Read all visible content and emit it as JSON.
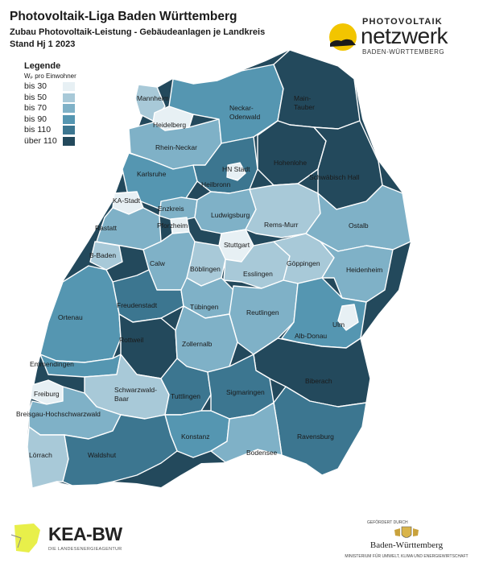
{
  "header": {
    "title": "Photovoltaik-Liga Baden Württemberg",
    "subtitle": "Zubau Photovoltaik-Leistung - Gebäudeanlagen je Landkreis",
    "stand": "Stand Hj 1 2023"
  },
  "pv_logo": {
    "top": "PHOTOVOLTAIK",
    "main": "netzwerk",
    "region": "BADEN-WÜRTTEMBERG"
  },
  "legend": {
    "title": "Legende",
    "unit": "Wₚ pro Einwohner",
    "classes": [
      {
        "label": "bis 30",
        "color": "#e7f0f4"
      },
      {
        "label": "bis 50",
        "color": "#a8c9d8"
      },
      {
        "label": "bis 70",
        "color": "#7fb1c7"
      },
      {
        "label": "bis 90",
        "color": "#5596b1"
      },
      {
        "label": "bis 110",
        "color": "#3c7690"
      },
      {
        "label": "über 110",
        "color": "#23495c"
      }
    ]
  },
  "map_labels": {
    "mannheim": "Mannheim",
    "heidelberg": "Heidelberg",
    "rhein_neckar": "Rhein-Neckar",
    "neckar_odenwald": "Neckar-\nOdenwald",
    "main_tauber": "Main-\nTauber",
    "karlsruhe": "Karlsruhe",
    "hn_stadt": "HN Stadt",
    "hohenlohe": "Hohenlohe",
    "schwaebisch_hall": "Schwäbisch Hall",
    "heilbronn": "Heilbronn",
    "ka_stadt": "KA-Stadt",
    "enzkreis": "Enzkreis",
    "ludwigsburg": "Ludwigsburg",
    "rems_murr": "Rems-Murr",
    "ostalb": "Ostalb",
    "rastatt": "Rastatt",
    "pforzheim": "Pforzheim",
    "stuttgart": "Stuttgart",
    "b_baden": "B-Baden",
    "calw": "Calw",
    "boeblingen": "Böblingen",
    "goeppingen": "Göppingen",
    "esslingen": "Esslingen",
    "heidenheim": "Heidenheim",
    "freudenstadt": "Freudenstadt",
    "tuebingen": "Tübingen",
    "reutlingen": "Reutlingen",
    "ortenau": "Ortenau",
    "rottweil": "Rottweil",
    "alb_donau": "Alb-Donau",
    "ulm": "Ulm",
    "zollernalb": "Zollernalb",
    "emmendingen": "Emmendingen",
    "biberach": "Biberach",
    "freiburg": "Freiburg",
    "schwarzwald_baar": "Schwarzwald-\nBaar",
    "tuttlingen": "Tuttlingen",
    "sigmaringen": "Sigmaringen",
    "breisgau": "Breisgau-Hochschwarzwald",
    "ravensburg": "Ravensburg",
    "konstanz": "Konstanz",
    "loerrach": "Lörrach",
    "waldshut": "Waldshut",
    "bodensee": "Bodensee"
  },
  "kea_logo": {
    "name": "KEA-BW",
    "sub": "DIE LANDESENERGIEAGENTUR"
  },
  "bw_logo": {
    "top": "GEFÖRDERT DURCH",
    "name": "Baden-Württemberg",
    "sub": "MINISTERIUM FÜR UMWELT, KLIMA UND ENERGIEWIRTSCHAFT"
  }
}
